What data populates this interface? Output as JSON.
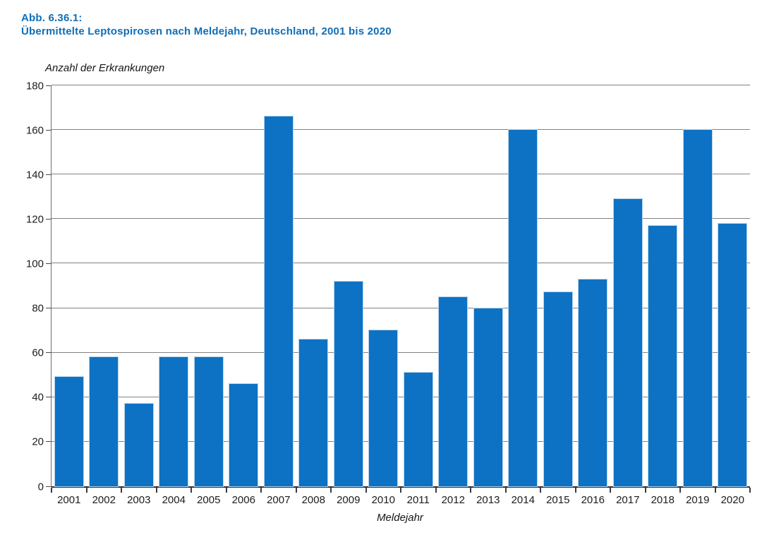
{
  "figure": {
    "label": "Abb. 6.36.1:",
    "title": "Übermittelte Leptospirosen nach Meldejahr, Deutschland, 2001 bis 2020"
  },
  "chart_data": {
    "type": "bar",
    "title": "Übermittelte Leptospirosen nach Meldejahr, Deutschland, 2001 bis 2020",
    "categories": [
      "2001",
      "2002",
      "2003",
      "2004",
      "2005",
      "2006",
      "2007",
      "2008",
      "2009",
      "2010",
      "2011",
      "2012",
      "2013",
      "2014",
      "2015",
      "2016",
      "2017",
      "2018",
      "2019",
      "2020"
    ],
    "values": [
      49,
      58,
      37,
      58,
      58,
      46,
      166,
      66,
      92,
      70,
      51,
      85,
      80,
      160,
      87,
      93,
      129,
      117,
      160,
      118
    ],
    "xlabel": "Meldejahr",
    "ylabel": "Anzahl der Erkrankungen",
    "ylim": [
      0,
      180
    ],
    "ytick_step": 20,
    "grid": "horizontal",
    "legend_position": "none",
    "bar_color": "#0d72c4"
  },
  "colors": {
    "title_blue": "#0e6eb8",
    "bar_blue": "#0d72c4",
    "gridline_gray": "#828282",
    "axis_dark": "#2e2e38",
    "text_dark": "#1c1c1c"
  }
}
